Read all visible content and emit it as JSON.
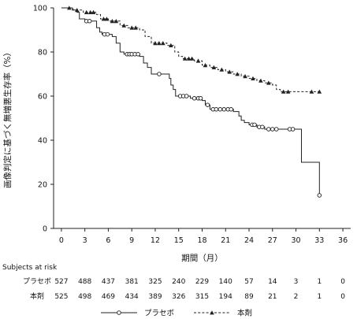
{
  "chart_data": {
    "type": "line",
    "title": "",
    "xlabel": "期間（月）",
    "ylabel": "画像判定に基づく無増悪生存率（%）",
    "xlim": [
      -1,
      37
    ],
    "ylim": [
      0,
      100
    ],
    "x_ticks": [
      0,
      3,
      6,
      9,
      12,
      15,
      18,
      21,
      24,
      27,
      30,
      33,
      36
    ],
    "y_ticks": [
      0,
      20,
      40,
      60,
      80,
      100
    ],
    "grid": false,
    "legend_position": "bottom",
    "series": [
      {
        "name": "プラセボ",
        "line_style": "solid",
        "marker": "open-circle",
        "color": "#222222",
        "steps": [
          [
            0,
            100
          ],
          [
            1.4,
            99
          ],
          [
            2.0,
            98
          ],
          [
            2.3,
            95
          ],
          [
            3.0,
            94
          ],
          [
            4.5,
            91
          ],
          [
            4.9,
            89
          ],
          [
            5.2,
            88
          ],
          [
            6.5,
            87
          ],
          [
            7.0,
            84
          ],
          [
            7.5,
            80
          ],
          [
            8.0,
            79
          ],
          [
            10.0,
            78
          ],
          [
            10.5,
            75
          ],
          [
            11.0,
            73
          ],
          [
            11.5,
            70
          ],
          [
            13.8,
            68
          ],
          [
            14.0,
            65
          ],
          [
            14.3,
            63
          ],
          [
            14.6,
            60
          ],
          [
            16.5,
            59
          ],
          [
            18.0,
            58
          ],
          [
            18.4,
            56
          ],
          [
            19.0,
            54
          ],
          [
            22.0,
            53
          ],
          [
            22.7,
            51
          ],
          [
            23.0,
            49
          ],
          [
            23.4,
            48
          ],
          [
            24.0,
            47
          ],
          [
            25.0,
            46
          ],
          [
            26.0,
            45
          ],
          [
            30.7,
            30
          ],
          [
            33.0,
            15
          ]
        ],
        "censored": [
          [
            3.2,
            94
          ],
          [
            3.6,
            94
          ],
          [
            5.5,
            88
          ],
          [
            5.9,
            88
          ],
          [
            8.4,
            79
          ],
          [
            8.7,
            79
          ],
          [
            9.0,
            79
          ],
          [
            9.4,
            79
          ],
          [
            9.8,
            79
          ],
          [
            12.5,
            70
          ],
          [
            15.2,
            60
          ],
          [
            15.6,
            60
          ],
          [
            16.0,
            60
          ],
          [
            17.0,
            59
          ],
          [
            17.5,
            59
          ],
          [
            17.8,
            59
          ],
          [
            18.7,
            56
          ],
          [
            19.4,
            54
          ],
          [
            19.8,
            54
          ],
          [
            20.3,
            54
          ],
          [
            20.8,
            54
          ],
          [
            21.3,
            54
          ],
          [
            21.7,
            54
          ],
          [
            24.4,
            47
          ],
          [
            24.7,
            47
          ],
          [
            25.3,
            46
          ],
          [
            25.7,
            46
          ],
          [
            26.5,
            45
          ],
          [
            27.0,
            45
          ],
          [
            27.5,
            45
          ],
          [
            29.2,
            45
          ],
          [
            29.6,
            45
          ],
          [
            33.0,
            15
          ]
        ]
      },
      {
        "name": "本剤",
        "line_style": "dashed",
        "marker": "filled-triangle",
        "color": "#222222",
        "steps": [
          [
            0,
            100
          ],
          [
            1.5,
            99
          ],
          [
            2.8,
            98
          ],
          [
            4.5,
            97
          ],
          [
            5.0,
            95
          ],
          [
            6.0,
            94
          ],
          [
            7.5,
            92
          ],
          [
            8.5,
            91
          ],
          [
            10.0,
            90
          ],
          [
            10.7,
            87
          ],
          [
            11.5,
            84
          ],
          [
            13.5,
            83
          ],
          [
            14.5,
            80
          ],
          [
            15.0,
            78
          ],
          [
            15.5,
            77
          ],
          [
            17.0,
            76
          ],
          [
            18.0,
            74
          ],
          [
            19.0,
            73
          ],
          [
            20.0,
            72
          ],
          [
            21.0,
            71
          ],
          [
            22.0,
            70
          ],
          [
            23.0,
            69
          ],
          [
            24.0,
            68
          ],
          [
            25.0,
            67
          ],
          [
            26.0,
            66
          ],
          [
            27.0,
            65
          ],
          [
            27.5,
            63
          ],
          [
            28.0,
            62
          ]
        ],
        "censored": [
          [
            1.0,
            100
          ],
          [
            2.0,
            99
          ],
          [
            3.2,
            98
          ],
          [
            3.7,
            98
          ],
          [
            4.1,
            98
          ],
          [
            5.4,
            95
          ],
          [
            5.8,
            95
          ],
          [
            6.5,
            94
          ],
          [
            7.0,
            94
          ],
          [
            8.0,
            92
          ],
          [
            9.0,
            91
          ],
          [
            9.5,
            91
          ],
          [
            12.0,
            84
          ],
          [
            12.5,
            84
          ],
          [
            13.0,
            84
          ],
          [
            14.0,
            83
          ],
          [
            15.8,
            77
          ],
          [
            16.3,
            77
          ],
          [
            16.7,
            77
          ],
          [
            17.5,
            76
          ],
          [
            18.4,
            74
          ],
          [
            19.5,
            73
          ],
          [
            20.5,
            72
          ],
          [
            21.5,
            71
          ],
          [
            22.5,
            70
          ],
          [
            23.5,
            69
          ],
          [
            24.5,
            68
          ],
          [
            25.5,
            67
          ],
          [
            26.5,
            66
          ],
          [
            28.4,
            62
          ],
          [
            29.0,
            62
          ],
          [
            32.0,
            62
          ],
          [
            33.0,
            62
          ]
        ]
      }
    ]
  },
  "risk_table": {
    "header": "Subjects at risk",
    "rows": [
      {
        "label": "プラセボ",
        "values": [
          "527",
          "488",
          "437",
          "381",
          "325",
          "240",
          "229",
          "140",
          "57",
          "14",
          "3",
          "1",
          "0"
        ]
      },
      {
        "label": "本剤",
        "values": [
          "525",
          "498",
          "469",
          "434",
          "389",
          "326",
          "315",
          "194",
          "89",
          "21",
          "2",
          "1",
          "0"
        ]
      }
    ]
  },
  "legend": [
    {
      "label": "プラセボ",
      "style": "solid",
      "marker": "open-circle"
    },
    {
      "label": "本剤",
      "style": "dashed",
      "marker": "filled-triangle"
    }
  ]
}
